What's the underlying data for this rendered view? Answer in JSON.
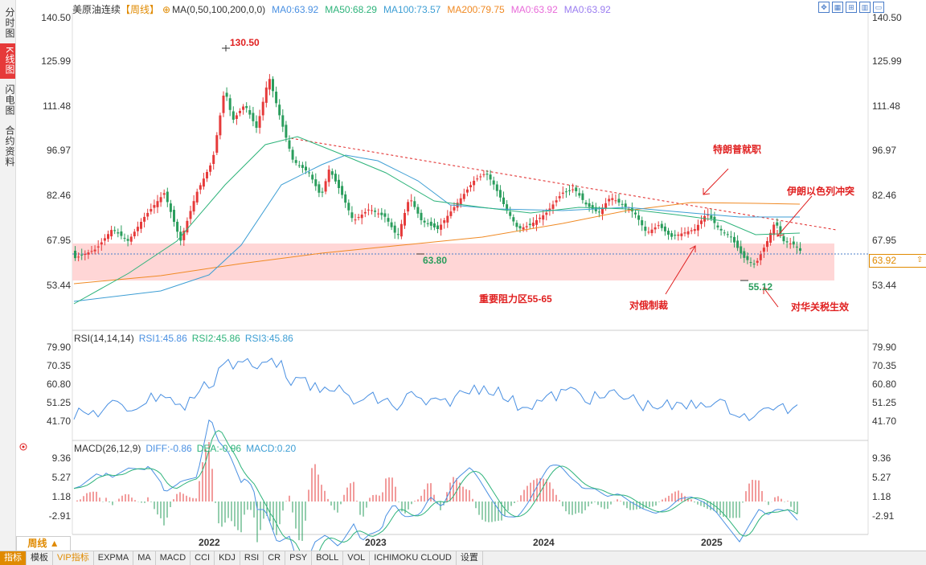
{
  "sidebar": [
    {
      "label": "分时图",
      "active": false
    },
    {
      "label": "K线图",
      "active": true
    },
    {
      "label": "闪电图",
      "active": false
    },
    {
      "label": "合约资料",
      "active": false
    }
  ],
  "header": {
    "symbol": "美原油连续",
    "period": "【周线】",
    "ma_spec": "MA(0,50,100,200,0,0)",
    "ma_values": [
      {
        "label": "MA0:63.92",
        "color": "#4a90e2"
      },
      {
        "label": "MA50:68.29",
        "color": "#2db37a"
      },
      {
        "label": "MA100:73.57",
        "color": "#3d9ed4"
      },
      {
        "label": "MA200:79.75",
        "color": "#f08a24"
      },
      {
        "label": "MA0:63.92",
        "color": "#e86ad9"
      },
      {
        "label": "MA0:63.92",
        "color": "#9a7cf0"
      }
    ]
  },
  "price_axis": {
    "right": [
      "140.50",
      "125.99",
      "111.48",
      "96.97",
      "82.46",
      "67.95",
      "53.44"
    ],
    "left": [
      "140.50",
      "125.99",
      "111.48",
      "96.97",
      "82.46",
      "67.95",
      "53.44"
    ],
    "current_price": "63.92"
  },
  "annotations": {
    "high": "130.50",
    "low1": "63.80",
    "low2": "55.12",
    "trump": "特朗普就职",
    "iran": "伊朗以色列冲突",
    "russia": "对俄制裁",
    "tariff": "对华关税生效",
    "zone": "重要阻力区55-65"
  },
  "rsi": {
    "title": "RSI(14,14,14)",
    "values": [
      {
        "label": "RSI1:45.86",
        "color": "#4a90e2"
      },
      {
        "label": "RSI2:45.86",
        "color": "#2db37a"
      },
      {
        "label": "RSI3:45.86",
        "color": "#3d9ed4"
      }
    ],
    "axis": [
      "79.90",
      "70.35",
      "60.80",
      "51.25",
      "41.70"
    ]
  },
  "macd": {
    "title": "MACD(26,12,9)",
    "values": [
      {
        "label": "DIFF:-0.86",
        "color": "#4a90e2"
      },
      {
        "label": "DEA:-0.96",
        "color": "#2db37a"
      },
      {
        "label": "MACD:0.20",
        "color": "#3d9ed4"
      }
    ],
    "axis": [
      "9.36",
      "5.27",
      "1.18",
      "-2.91"
    ]
  },
  "x_axis": [
    "2022",
    "2023",
    "2024",
    "2025"
  ],
  "period_button": "周线 ▲",
  "bottom_tabs": [
    "指标",
    "模板",
    "VIP指标",
    "EXPMA",
    "MA",
    "MACD",
    "CCI",
    "KDJ",
    "RSI",
    "CR",
    "PSY",
    "BOLL",
    "VOL",
    "ICHIMOKU CLOUD",
    "设置"
  ],
  "colors": {
    "up": "#e63a3a",
    "down": "#2a9d5c",
    "zone": "#ffd4d4",
    "resistance": "#e02020"
  }
}
